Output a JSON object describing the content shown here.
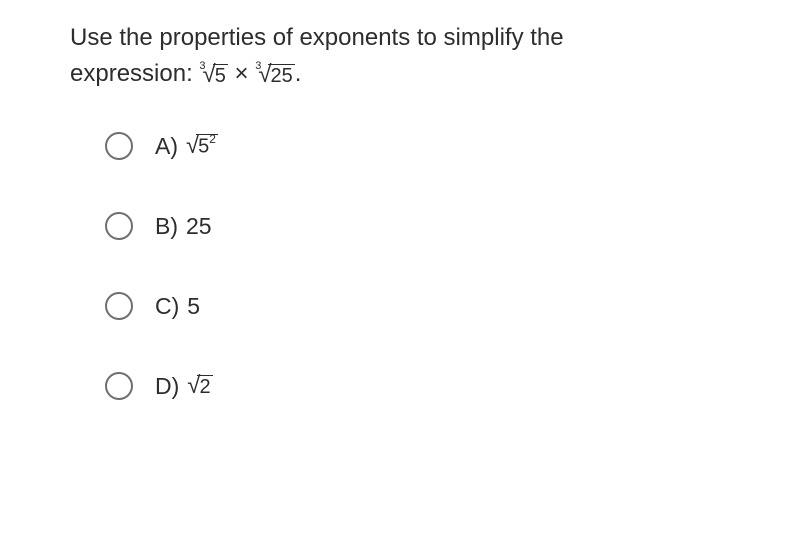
{
  "question": {
    "line1": "Use the properties of exponents to simplify the",
    "line2_prefix": "expression: ",
    "line2_suffix": ".",
    "expr": {
      "root1_index": "3",
      "root1_radicand": "5",
      "times": " × ",
      "root2_index": "3",
      "root2_radicand": "25"
    }
  },
  "options": {
    "a": {
      "letter": "A)",
      "radicand_base": "5",
      "radicand_exp": "2"
    },
    "b": {
      "letter": "B)",
      "value": "25"
    },
    "c": {
      "letter": "C)",
      "value": "5"
    },
    "d": {
      "letter": "D)",
      "radicand": "2"
    }
  },
  "colors": {
    "text": "#2d2d2d",
    "radio_border": "#6e6e6e",
    "background": "#ffffff"
  },
  "typography": {
    "question_fontsize": 24,
    "option_fontsize": 23,
    "root_index_fontsize": 11
  }
}
